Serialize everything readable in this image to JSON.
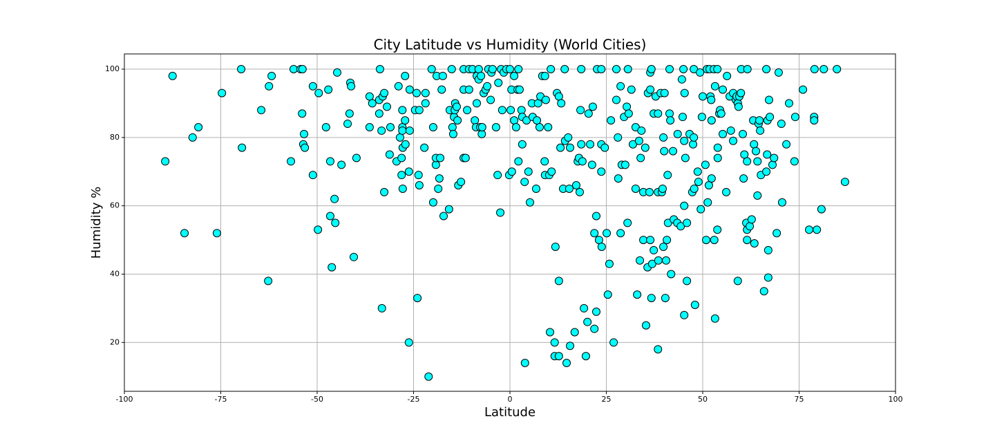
{
  "chart_data": {
    "type": "scatter",
    "title": "City Latitude vs Humidity (World Cities)",
    "x_label": "Latitude",
    "y_label": "Humidity %",
    "color": "#00ffff",
    "edgecolor": "#000000",
    "grid": true,
    "xlim": [
      -100,
      100
    ],
    "xticks": [
      -100,
      -75,
      -50,
      -25,
      0,
      25,
      50,
      75,
      100
    ],
    "ylim": [
      5.7,
      104.45
    ],
    "yticks": [
      20,
      40,
      60,
      80,
      100
    ],
    "x": [
      -89.4,
      -87.5,
      -84.4,
      -82.3,
      -80.8,
      -76,
      -74.7,
      -69.7,
      -69.5,
      -64.5,
      -62.7,
      -62.5,
      -61.8,
      -56.8,
      -56.1,
      -54.3,
      -53.8,
      -53.9,
      -53.6,
      -53.4,
      -53.2,
      -51.1,
      -51.1,
      -49.8,
      -49.6,
      -47.7,
      -47.1,
      -46.6,
      -46.6,
      -46.2,
      -45.5,
      -45.3,
      -44.8,
      -43.7,
      -42.1,
      -41.6,
      -41.4,
      -41.2,
      -40.5,
      -39.8,
      -36.4,
      -36.4,
      -35.7,
      -33.9,
      -33.7,
      -33.9,
      -33.3,
      -33.2,
      -33,
      -32.6,
      -32.6,
      -31.9,
      -31.2,
      -31,
      -29.4,
      -28.9,
      -28.5,
      -28.1,
      -28.1,
      -27.9,
      -27.9,
      -27.9,
      -27.8,
      -27.8,
      -27.2,
      -27.2,
      -27.1,
      -26.2,
      -26.2,
      -26,
      -26,
      -24.6,
      -24.2,
      -24,
      -23.7,
      -23.5,
      -23.5,
      -22.2,
      -21.9,
      -21.9,
      -21.1,
      -20.3,
      -19.9,
      -19.9,
      -19.2,
      -19.2,
      -19,
      -18.6,
      -18.3,
      -18.1,
      -17.7,
      -17.4,
      -17.2,
      -15.8,
      -15.6,
      -15.1,
      -14.9,
      -14.7,
      -14.5,
      -14.3,
      -14.2,
      -13.8,
      -13.6,
      -13.4,
      -12.7,
      -12,
      -12,
      -12,
      -11.5,
      -11.1,
      -10.6,
      -10.6,
      -9.7,
      -9.1,
      -8.6,
      -8.8,
      -8.6,
      -8.1,
      -8.1,
      -7.7,
      -7.3,
      -7.2,
      -7.5,
      -6.8,
      -6.3,
      -5.9,
      -5.6,
      -5,
      -4.8,
      -4.5,
      -3.6,
      -3.2,
      -3,
      -2.5,
      -2.3,
      -2,
      -1.6,
      -0.9,
      -0.2,
      0,
      0.2,
      0.4,
      0.5,
      1.1,
      1.1,
      1.6,
      2,
      2.2,
      2.2,
      2.5,
      3,
      3.2,
      3.2,
      3.8,
      3.9,
      4.3,
      4.8,
      5.2,
      5.7,
      5.9,
      6.8,
      7,
      7.3,
      7.7,
      7.9,
      8.4,
      9,
      9.1,
      9.1,
      9.3,
      9.9,
      10.2,
      10.4,
      10.6,
      10.8,
      11.6,
      11.6,
      11.8,
      12.2,
      12.7,
      12.7,
      12.7,
      13.1,
      13.3,
      13.8,
      14.2,
      14.3,
      14.7,
      15.1,
      15.4,
      15.6,
      15.6,
      16.8,
      17.2,
      17.6,
      17.9,
      18.1,
      18.5,
      18.3,
      18.5,
      18.8,
      19.2,
      19.7,
      20.1,
      20.4,
      20.8,
      21.3,
      21.5,
      21.9,
      21.9,
      22.4,
      22.4,
      22.6,
      23.1,
      23.7,
      23.7,
      23.7,
      23.8,
      24.6,
      25.1,
      25.4,
      25.8,
      26.2,
      26.9,
      27.6,
      27.6,
      28,
      28.1,
      28.7,
      28.7,
      29,
      29.6,
      29.9,
      30.3,
      30.6,
      30.5,
      30.8,
      31.5,
      31.9,
      32.6,
      32.6,
      33,
      33.5,
      33.7,
      33.9,
      34.1,
      34.6,
      34.6,
      35.1,
      35.3,
      35.7,
      35.8,
      36.2,
      36.4,
      36.4,
      36.4,
      36.7,
      36.7,
      36.9,
      37.3,
      37.3,
      37.8,
      38.4,
      38.4,
      38.4,
      38.5,
      39.1,
      39.4,
      39.6,
      39.8,
      39.8,
      40,
      40.1,
      40.3,
      40.5,
      40.7,
      40.9,
      41,
      41.4,
      41.4,
      41.6,
      41.8,
      42.3,
      42.5,
      43.4,
      43.5,
      44.3,
      44.6,
      44.8,
      45,
      45.2,
      45.2,
      45.2,
      45.3,
      45.5,
      45.9,
      45.9,
      46.6,
      47.3,
      47.5,
      47.7,
      47.7,
      47.8,
      48,
      48.7,
      48.9,
      49.3,
      49.5,
      49.8,
      50,
      50.7,
      50.9,
      51.1,
      51.3,
      51.6,
      51.8,
      52,
      52.2,
      52.3,
      52.3,
      52.9,
      53,
      53.2,
      53.2,
      53.8,
      53.8,
      53.9,
      53.9,
      54.3,
      54.5,
      54.8,
      55.2,
      55.2,
      56.1,
      56.3,
      57,
      57.3,
      57.9,
      57.9,
      58.6,
      58.8,
      59.1,
      59.3,
      59.1,
      59.5,
      59.9,
      60,
      60.4,
      60.6,
      60.8,
      61.3,
      61.5,
      61.5,
      61.5,
      61.6,
      62.2,
      62.7,
      63.1,
      63.3,
      63.4,
      63.8,
      64.2,
      64.2,
      64.5,
      64.7,
      64.9,
      65.1,
      65.9,
      66.5,
      66.5,
      66.7,
      66.8,
      67,
      67,
      67.2,
      67.4,
      68.1,
      68.5,
      69.2,
      69.7,
      70.4,
      70.6,
      71.7,
      72.4,
      73.8,
      74,
      76,
      77.6,
      78.9,
      78.9,
      79,
      79.6,
      80.8,
      81.4,
      84.8,
      86.9
    ],
    "values": [
      73,
      98,
      52,
      80,
      83,
      52,
      93,
      100,
      77,
      88,
      38,
      95,
      98,
      73,
      100,
      100,
      100,
      87,
      78,
      81,
      77,
      95,
      69,
      53,
      93,
      83,
      94,
      73,
      57,
      42,
      62,
      55,
      99,
      72,
      84,
      87,
      96,
      95,
      45,
      74,
      83,
      92,
      90,
      87,
      100,
      91,
      82,
      30,
      92,
      64,
      93,
      89,
      75,
      83,
      73,
      95,
      80,
      69,
      74,
      83,
      82,
      88,
      65,
      77,
      98,
      85,
      78,
      70,
      20,
      94,
      82,
      88,
      93,
      33,
      69,
      66,
      88,
      77,
      93,
      90,
      10,
      100,
      61,
      83,
      72,
      74,
      98,
      65,
      68,
      74,
      94,
      98,
      57,
      59,
      88,
      100,
      83,
      81,
      86,
      88,
      90,
      89,
      85,
      66,
      67,
      94,
      74,
      100,
      74,
      88,
      100,
      94,
      100,
      85,
      90,
      83,
      98,
      100,
      97,
      83,
      81,
      83,
      98,
      93,
      94,
      95,
      100,
      91,
      99,
      100,
      83,
      69,
      96,
      58,
      100,
      88,
      99,
      100,
      69,
      100,
      88,
      94,
      70,
      98,
      85,
      83,
      94,
      73,
      100,
      94,
      88,
      78,
      86,
      67,
      14,
      85,
      70,
      61,
      90,
      86,
      65,
      85,
      90,
      83,
      92,
      98,
      73,
      69,
      98,
      91,
      83,
      69,
      23,
      100,
      70,
      20,
      16,
      48,
      93,
      16,
      92,
      38,
      77,
      90,
      65,
      100,
      79,
      14,
      80,
      65,
      77,
      19,
      23,
      66,
      73,
      74,
      64,
      78,
      88,
      100,
      73,
      30,
      16,
      26,
      87,
      78,
      72,
      89,
      52,
      24,
      57,
      29,
      100,
      50,
      78,
      100,
      70,
      48,
      77,
      52,
      34,
      43,
      85,
      20,
      100,
      91,
      80,
      68,
      95,
      52,
      72,
      86,
      72,
      89,
      100,
      55,
      87,
      94,
      78,
      65,
      83,
      34,
      79,
      44,
      74,
      82,
      50,
      64,
      77,
      25,
      42,
      93,
      64,
      50,
      94,
      99,
      100,
      33,
      43,
      87,
      47,
      92,
      64,
      87,
      18,
      44,
      93,
      64,
      65,
      80,
      48,
      76,
      93,
      33,
      44,
      50,
      69,
      55,
      100,
      87,
      85,
      40,
      76,
      56,
      55,
      81,
      54,
      97,
      86,
      100,
      28,
      60,
      79,
      93,
      74,
      38,
      55,
      81,
      64,
      78,
      80,
      100,
      65,
      31,
      70,
      67,
      99,
      59,
      86,
      92,
      72,
      50,
      100,
      61,
      66,
      100,
      92,
      91,
      68,
      85,
      100,
      50,
      27,
      95,
      100,
      53,
      74,
      77,
      87,
      88,
      87,
      94,
      81,
      64,
      98,
      92,
      82,
      93,
      79,
      91,
      92,
      90,
      89,
      38,
      92,
      93,
      100,
      81,
      68,
      75,
      55,
      73,
      53,
      50,
      100,
      54,
      56,
      85,
      78,
      49,
      76,
      63,
      73,
      84,
      85,
      82,
      69,
      35,
      70,
      100,
      75,
      85,
      47,
      39,
      91,
      86,
      72,
      74,
      52,
      99,
      84,
      61,
      78,
      90,
      73,
      86,
      94,
      53,
      86,
      85,
      100,
      53,
      59,
      100,
      100,
      67
    ]
  }
}
